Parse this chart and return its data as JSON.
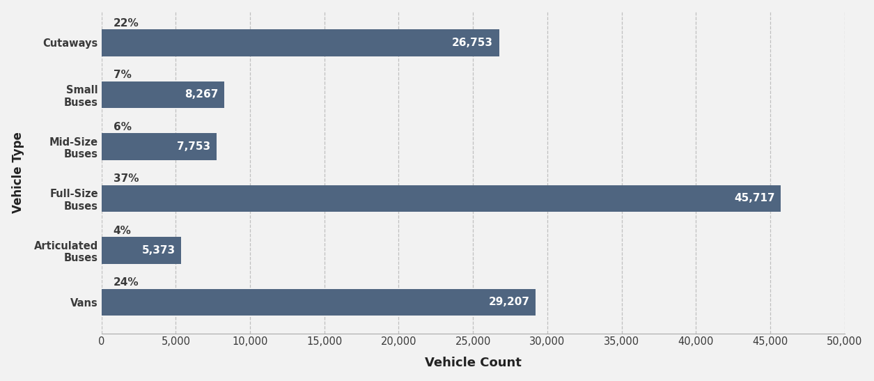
{
  "categories": [
    "Vans",
    "Articulated\nBuses",
    "Full-Size\nBuses",
    "Mid-Size\nBuses",
    "Small\nBuses",
    "Cutaways"
  ],
  "values": [
    29207,
    5373,
    45717,
    7753,
    8267,
    26753
  ],
  "percentages": [
    "24%",
    "4%",
    "37%",
    "6%",
    "7%",
    "22%"
  ],
  "bar_color": "#4f6580",
  "bar_label_color": "#ffffff",
  "xlabel": "Vehicle Count",
  "ylabel": "Vehicle Type",
  "xlim": [
    0,
    50000
  ],
  "xticks": [
    0,
    5000,
    10000,
    15000,
    20000,
    25000,
    30000,
    35000,
    40000,
    45000,
    50000
  ],
  "grid_color": "#c0c0c0",
  "background_color": "#f2f2f2",
  "bar_label_fontsize": 11,
  "pct_label_fontsize": 11,
  "axis_label_fontsize": 13,
  "tick_label_fontsize": 10.5,
  "ylabel_fontsize": 12,
  "bar_height": 0.52
}
